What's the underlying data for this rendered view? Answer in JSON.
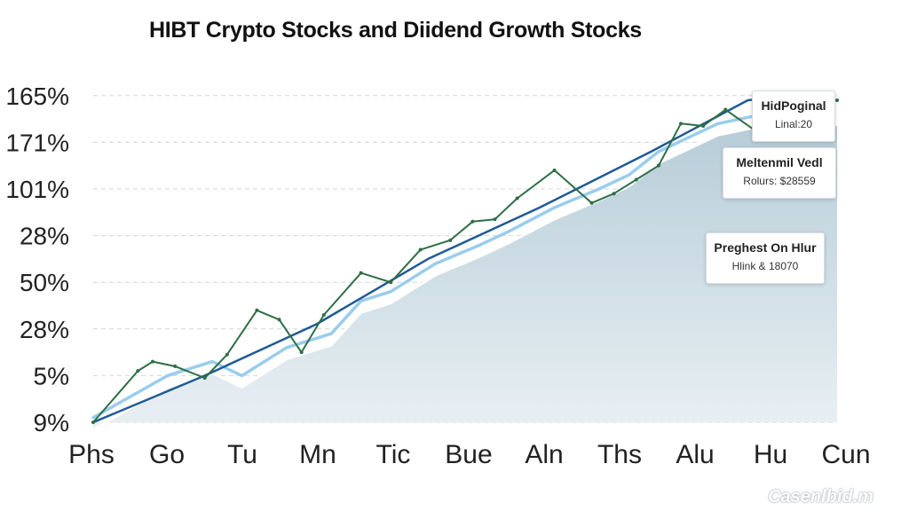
{
  "chart_data": {
    "type": "line",
    "title": "HIBT Crypto Stocks and Diidend Growth Stocks",
    "xlabel": "",
    "ylabel": "",
    "categories": [
      "Phs",
      "Go",
      "Tu",
      "Mn",
      "Tic",
      "Bue",
      "Aln",
      "Ths",
      "Alu",
      "Hu",
      "Cun"
    ],
    "y_tick_labels": [
      "9%",
      "5%",
      "28%",
      "50%",
      "28%",
      "101%",
      "171%",
      "165%"
    ],
    "y_tick_values": [
      0,
      1,
      2,
      3,
      4,
      5,
      6,
      7
    ],
    "ylim": [
      0,
      7.3
    ],
    "xlim": [
      0,
      10
    ],
    "grid": true,
    "series": [
      {
        "name": "",
        "color": "#2e6e44",
        "style": "jagged",
        "x": [
          0,
          0.6,
          0.8,
          1.1,
          1.5,
          1.8,
          2.2,
          2.5,
          2.8,
          3.1,
          3.6,
          4.0,
          4.4,
          4.8,
          5.1,
          5.4,
          5.7,
          6.2,
          6.7,
          7.0,
          7.3,
          7.6,
          7.9,
          8.2,
          8.5,
          8.9,
          9.2,
          9.5,
          9.8,
          10.0
        ],
        "y": [
          0.0,
          1.1,
          1.3,
          1.2,
          0.95,
          1.45,
          2.4,
          2.2,
          1.5,
          2.3,
          3.2,
          3.0,
          3.7,
          3.9,
          4.3,
          4.35,
          4.8,
          5.4,
          4.7,
          4.9,
          5.2,
          5.5,
          6.4,
          6.35,
          6.7,
          6.25,
          7.0,
          6.7,
          6.85,
          6.9
        ]
      },
      {
        "name": "",
        "color": "#1f5a96",
        "style": "trend",
        "x": [
          0,
          1.5,
          3.0,
          4.5,
          6.0,
          7.5,
          8.8,
          9.4
        ],
        "y": [
          0.0,
          1.0,
          2.1,
          3.5,
          4.6,
          5.8,
          6.9,
          7.0
        ]
      },
      {
        "name": "",
        "color": "#8ec8ec",
        "style": "soft",
        "x": [
          0,
          1.0,
          1.6,
          2.0,
          2.6,
          3.2,
          3.6,
          4.0,
          4.6,
          5.2,
          5.6,
          6.2,
          6.8,
          7.2,
          7.6,
          8.0,
          8.4,
          9.0
        ],
        "y": [
          0.1,
          1.0,
          1.3,
          1.0,
          1.6,
          1.9,
          2.6,
          2.8,
          3.4,
          3.8,
          4.1,
          4.6,
          5.0,
          5.3,
          5.8,
          6.1,
          6.4,
          6.6
        ]
      }
    ],
    "annotations": [
      {
        "title": "HidPoginal",
        "sub": "Linal:20"
      },
      {
        "title": "Meltenmil Vedl",
        "sub": "Rolurs: $28559"
      },
      {
        "title": "Preghest On Hlur",
        "sub": "Hlink & 18070"
      }
    ]
  },
  "watermark": "Casenlbid.m"
}
